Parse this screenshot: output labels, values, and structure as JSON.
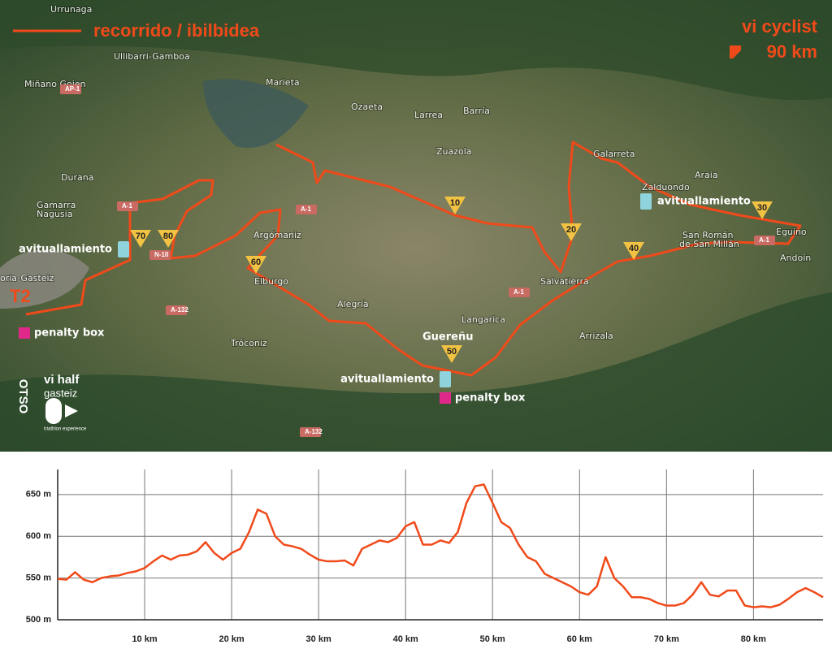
{
  "map": {
    "legend": "recorrido / ibilbidea",
    "event": "vi cyclist",
    "distance": "90 km",
    "transition": "T2",
    "places": [
      "Urrunaga",
      "Ullibarri-Gamboa",
      "Miñano Goien",
      "Marieta",
      "Ozaeta",
      "Larrea",
      "Barría",
      "Zuazola",
      "Galarreta",
      "Araia",
      "Zalduondo",
      "Durana",
      "Gamarra",
      "Nagusia",
      "Argómaniz",
      "Elburgo",
      "Alegría",
      "Salvatierra",
      "Langarica",
      "Arrizala",
      "Tróconiz",
      "San Román",
      "de San Millán",
      "Andoín",
      "Eguino",
      "oria-Gasteiz",
      "Guereñu"
    ],
    "roads": [
      "AP-1",
      "A-1",
      "A-1",
      "A-1",
      "A-1",
      "N-10",
      "A-132",
      "A-132"
    ],
    "km_markers": [
      "10",
      "20",
      "30",
      "40",
      "50",
      "60",
      "70",
      "80"
    ],
    "aid_stations": [
      "avituallamiento",
      "avituallamiento",
      "avituallamiento"
    ],
    "penalty_boxes": [
      "penalty box",
      "penalty box"
    ],
    "brand": {
      "otso": "OTSO",
      "event": "vi half",
      "city": "gasteiz",
      "tagline": "triathlon experience"
    }
  },
  "chart_data": {
    "type": "line",
    "color": "#f04a1a",
    "x": [
      0,
      1,
      2,
      3,
      4,
      5,
      6,
      7,
      8,
      9,
      10,
      11,
      12,
      13,
      14,
      15,
      16,
      17,
      18,
      19,
      20,
      21,
      22,
      23,
      24,
      25,
      26,
      27,
      28,
      29,
      30,
      31,
      32,
      33,
      34,
      35,
      36,
      37,
      38,
      39,
      40,
      41,
      42,
      43,
      44,
      45,
      46,
      47,
      48,
      49,
      50,
      51,
      52,
      53,
      54,
      55,
      56,
      57,
      58,
      59,
      60,
      61,
      62,
      63,
      64,
      65,
      66,
      67,
      68,
      69,
      70,
      71,
      72,
      73,
      74,
      75,
      76,
      77,
      78,
      79,
      80,
      81,
      82,
      83,
      84,
      85,
      86,
      87,
      88
    ],
    "values": [
      549,
      548,
      557,
      548,
      545,
      550,
      552,
      553,
      556,
      558,
      562,
      570,
      577,
      572,
      577,
      578,
      582,
      593,
      580,
      572,
      580,
      585,
      605,
      632,
      627,
      600,
      590,
      588,
      585,
      578,
      572,
      570,
      570,
      571,
      565,
      585,
      590,
      595,
      593,
      598,
      612,
      617,
      590,
      590,
      595,
      592,
      605,
      640,
      660,
      662,
      640,
      617,
      610,
      590,
      575,
      570,
      555,
      550,
      545,
      540,
      533,
      530,
      540,
      575,
      550,
      540,
      527,
      527,
      525,
      520,
      517,
      517,
      520,
      530,
      545,
      530,
      528,
      535,
      535,
      517,
      515,
      516,
      515,
      518,
      525,
      533,
      538,
      533,
      527
    ],
    "xlim": [
      0,
      88
    ],
    "ylim": [
      500,
      680
    ],
    "xticks": [
      {
        "value": 10,
        "label": "10 km"
      },
      {
        "value": 20,
        "label": "20 km"
      },
      {
        "value": 30,
        "label": "30 km"
      },
      {
        "value": 40,
        "label": "40 km"
      },
      {
        "value": 50,
        "label": "50 km"
      },
      {
        "value": 60,
        "label": "60 km"
      },
      {
        "value": 70,
        "label": "70 km"
      },
      {
        "value": 80,
        "label": "80 km"
      }
    ],
    "yticks": [
      {
        "value": 500,
        "label": "500 m"
      },
      {
        "value": 550,
        "label": "550 m"
      },
      {
        "value": 600,
        "label": "600 m"
      },
      {
        "value": 650,
        "label": "650 m"
      }
    ],
    "grid": true
  }
}
